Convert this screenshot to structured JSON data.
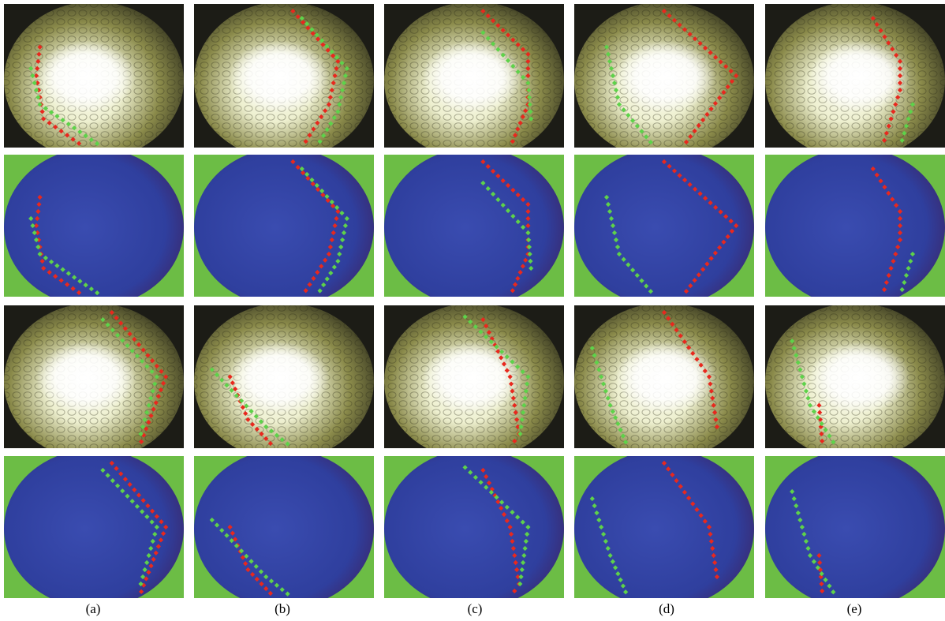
{
  "panel_labels": [
    "(a)",
    "(b)",
    "(c)",
    "(d)",
    "(e)"
  ]
}
